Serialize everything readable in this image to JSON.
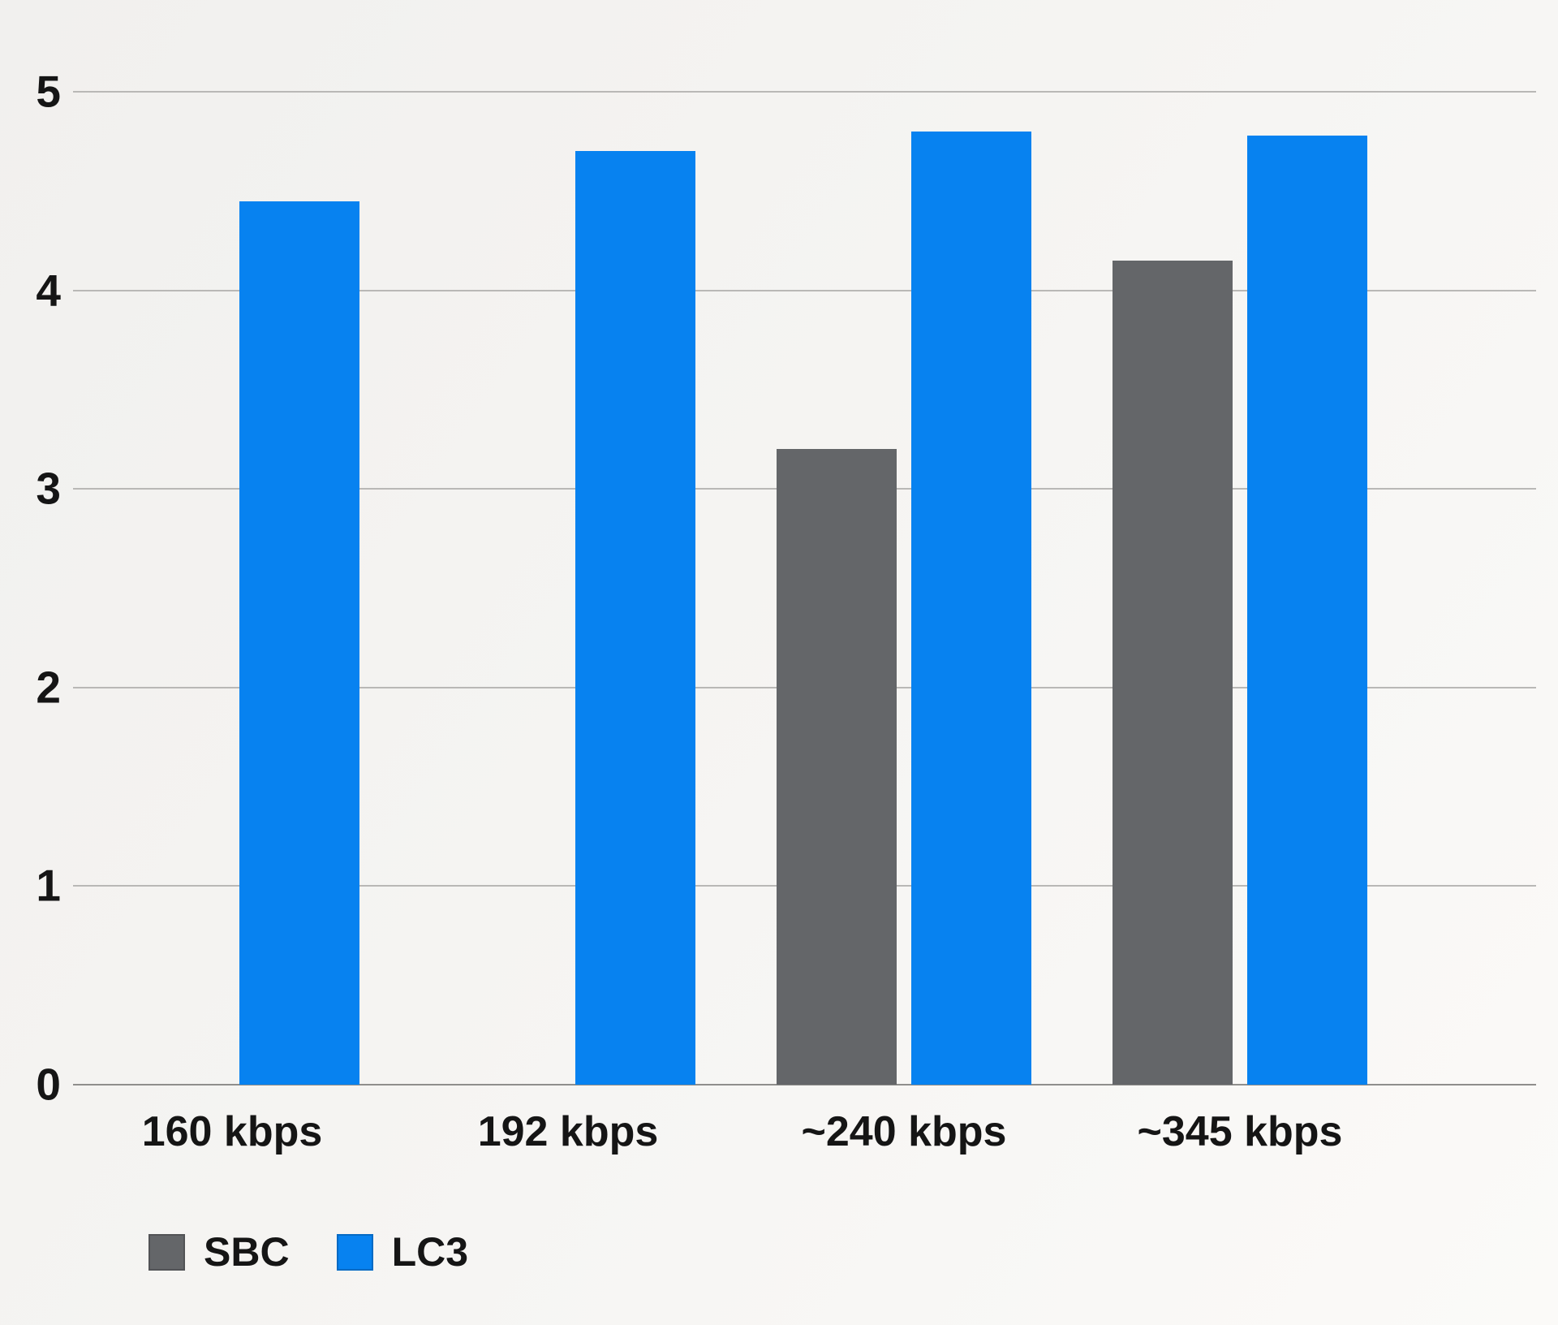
{
  "chart_data": {
    "type": "bar",
    "title": "",
    "xlabel": "",
    "ylabel": "",
    "categories": [
      "160 kbps",
      "192 kbps",
      "~240 kbps",
      "~345 kbps"
    ],
    "series": [
      {
        "name": "SBC",
        "color": "#646669",
        "values": [
          null,
          null,
          3.2,
          4.15
        ]
      },
      {
        "name": "LC3",
        "color": "#0782f0",
        "values": [
          4.45,
          4.7,
          4.8,
          4.78
        ]
      }
    ],
    "ylim": [
      0,
      5
    ],
    "yticks": [
      0,
      1,
      2,
      3,
      4,
      5
    ],
    "grid": "horizontal",
    "legend_position": "bottom-left"
  }
}
